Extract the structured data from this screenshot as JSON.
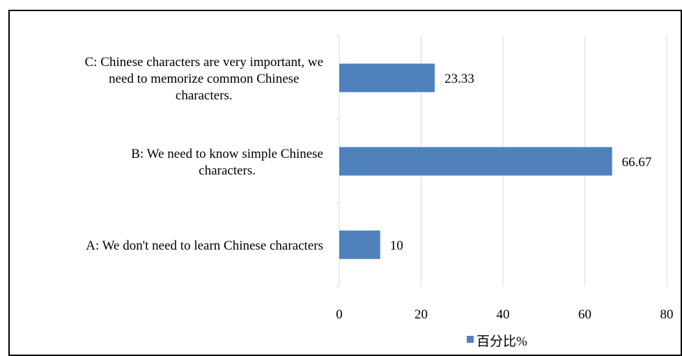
{
  "chart_data": {
    "type": "bar",
    "orientation": "horizontal",
    "categories": [
      {
        "id": "A",
        "lines": [
          "A: We don't need to learn Chinese characters"
        ],
        "value": 10,
        "value_label": "10"
      },
      {
        "id": "B",
        "lines": [
          "B: We need to know simple Chinese",
          "characters."
        ],
        "value": 66.67,
        "value_label": "66.67"
      },
      {
        "id": "C",
        "lines": [
          "C: Chinese characters are very important, we",
          "need to memorize common Chinese",
          "characters."
        ],
        "value": 23.33,
        "value_label": "23.33"
      }
    ],
    "series": [
      {
        "name": "百分比%",
        "values": [
          10,
          66.67,
          23.33
        ]
      }
    ],
    "xlim": [
      0,
      80
    ],
    "x_ticks": [
      0,
      20,
      40,
      60,
      80
    ],
    "x_tick_labels": [
      "0",
      "20",
      "40",
      "60",
      "80"
    ],
    "title": "",
    "xlabel": "",
    "ylabel": "",
    "grid": "vertical",
    "legend_position": "bottom",
    "colors": {
      "bar": "#4f81bd",
      "grid": "#d9d9d9",
      "text": "#000000"
    }
  }
}
